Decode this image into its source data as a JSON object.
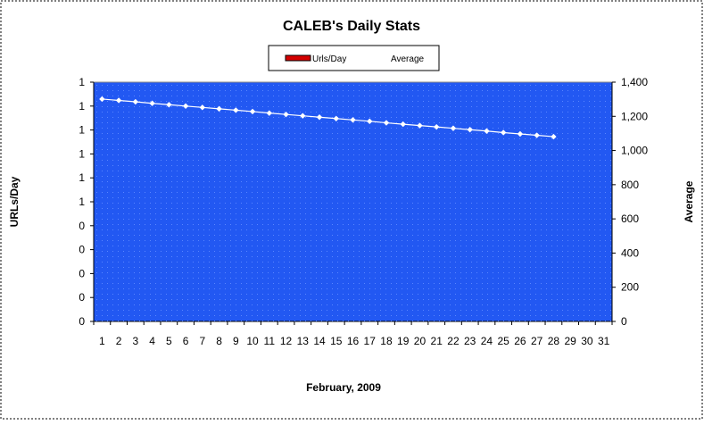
{
  "chart_data": {
    "type": "line",
    "title": "CALEB's Daily Stats",
    "xlabel": "February, 2009",
    "ylabel_left": "URLs/Day",
    "ylabel_right": "Average",
    "legend": {
      "placement": "top-center",
      "entries": [
        {
          "label": "Urls/Day",
          "swatch_color": "#d40000"
        },
        {
          "label": "Average"
        }
      ]
    },
    "x_categories": [
      "1",
      "2",
      "3",
      "4",
      "5",
      "6",
      "7",
      "8",
      "9",
      "10",
      "11",
      "12",
      "13",
      "14",
      "15",
      "16",
      "17",
      "18",
      "19",
      "20",
      "21",
      "22",
      "23",
      "24",
      "25",
      "26",
      "27",
      "28",
      "29",
      "30",
      "31"
    ],
    "left_axis": {
      "tick_labels": [
        "0",
        "0",
        "0",
        "0",
        "0",
        "1",
        "1",
        "1",
        "1",
        "1",
        "1"
      ]
    },
    "right_axis": {
      "ylim": [
        0,
        1400
      ],
      "tick_labels": [
        "0",
        "200",
        "400",
        "600",
        "800",
        "1,000",
        "1,200",
        "1,400"
      ]
    },
    "series": [
      {
        "name": "Average",
        "axis": "right",
        "color": "#ffffff",
        "x": [
          1,
          2,
          3,
          4,
          5,
          6,
          7,
          8,
          9,
          10,
          11,
          12,
          13,
          14,
          15,
          16,
          17,
          18,
          19,
          20,
          21,
          22,
          23,
          24,
          25,
          26,
          27,
          28
        ],
        "values": [
          1301,
          1293,
          1285,
          1276,
          1268,
          1260,
          1252,
          1244,
          1236,
          1228,
          1219,
          1211,
          1203,
          1195,
          1187,
          1179,
          1171,
          1162,
          1154,
          1146,
          1138,
          1130,
          1122,
          1114,
          1105,
          1097,
          1089,
          1081
        ]
      }
    ],
    "plot_background": "#2258f2",
    "grid": false
  }
}
